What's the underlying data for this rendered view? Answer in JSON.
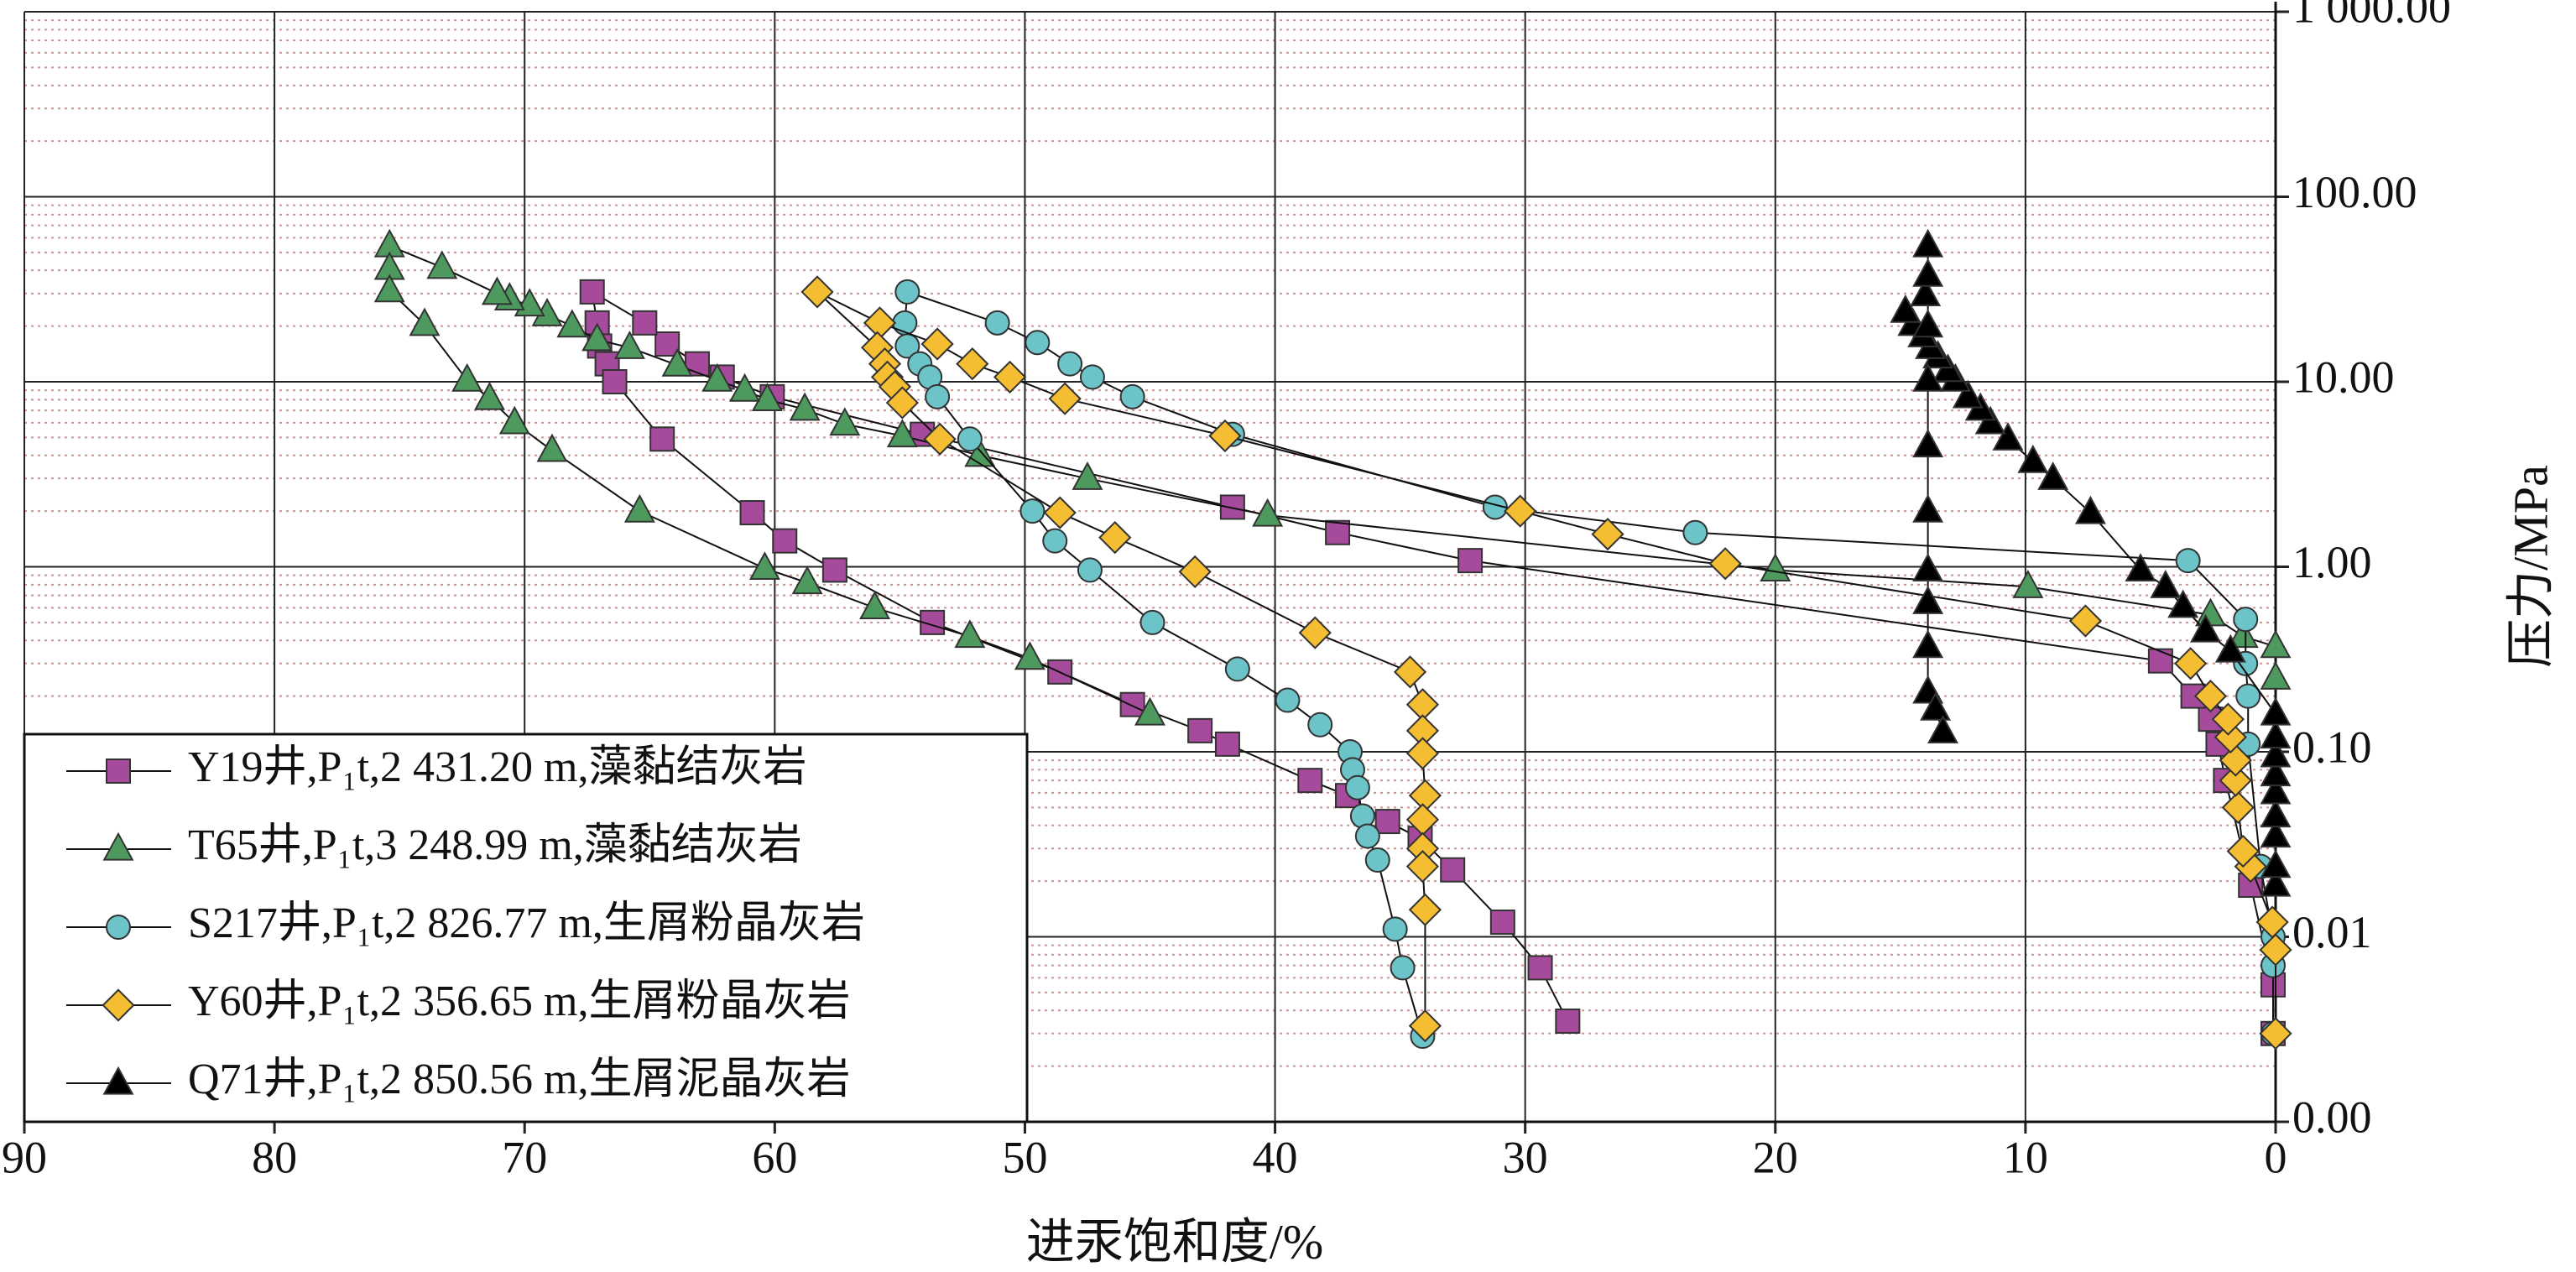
{
  "chart_data": {
    "type": "line",
    "x_label": "进汞饱和度/%",
    "y_label": "压力/MPa",
    "xlim": [
      90,
      0
    ],
    "xticks": [
      90,
      80,
      70,
      60,
      50,
      40,
      30,
      20,
      10,
      0
    ],
    "ylim": [
      0.001,
      1000
    ],
    "log_y": true,
    "yticks": [
      {
        "value": 0.001,
        "label": "0.00"
      },
      {
        "value": 0.01,
        "label": "0.01"
      },
      {
        "value": 0.1,
        "label": "0.10"
      },
      {
        "value": 1,
        "label": "1.00"
      },
      {
        "value": 10,
        "label": "10.00"
      },
      {
        "value": 100,
        "label": "100.00"
      },
      {
        "value": 1000,
        "label": "1 000.00"
      }
    ],
    "grid": true,
    "legend": "lower left",
    "series": [
      {
        "name": "Y19井,P₁t,2 431.20 m,藻黏结灰岩",
        "color": "#a64b9c",
        "marker": "square",
        "x": [
          0.1,
          0.1,
          1.0,
          2.0,
          2.3,
          2.6,
          3.3,
          4.6,
          32.2,
          37.5,
          41.7,
          54.1,
          60.1,
          62.1,
          63.1,
          64.3,
          65.2,
          67.3,
          67.1,
          67.0,
          66.7,
          66.4,
          64.5,
          60.9,
          59.6,
          57.6,
          53.7,
          48.6,
          45.7,
          43.0,
          41.9,
          38.6,
          37.1,
          35.5,
          34.2,
          32.9,
          30.9,
          29.4,
          28.3
        ],
        "values": [
          0.003,
          0.0055,
          0.019,
          0.07,
          0.11,
          0.15,
          0.2,
          0.31,
          1.08,
          1.53,
          2.1,
          5.2,
          8.3,
          10.6,
          12.5,
          16,
          20.8,
          30.6,
          20.8,
          15.6,
          12.5,
          10,
          4.9,
          1.96,
          1.38,
          0.96,
          0.5,
          0.27,
          0.18,
          0.13,
          0.11,
          0.07,
          0.058,
          0.042,
          0.034,
          0.023,
          0.012,
          0.0068,
          0.0035
        ]
      },
      {
        "name": "T65井,P₁t,3 248.99 m,藻黏结灰岩",
        "color": "#4e9a5e",
        "marker": "triangle",
        "x": [
          0,
          0,
          1.3,
          2.6,
          9.9,
          20,
          40.3,
          47.5,
          51.8,
          54.9,
          57.2,
          58.8,
          60.3,
          61.2,
          62.3,
          63.9,
          65.8,
          67.1,
          68.1,
          69.1,
          69.8,
          70.6,
          71.1,
          73.3,
          75.4,
          75.4,
          75.4,
          74.0,
          72.3,
          71.4,
          70.4,
          68.9,
          65.4,
          60.4,
          58.7,
          56.0,
          52.2,
          49.8,
          45.0
        ],
        "values": [
          0.25,
          0.37,
          0.42,
          0.55,
          0.78,
          0.96,
          1.9,
          3.0,
          4.0,
          5.1,
          5.9,
          7.1,
          8.0,
          9.0,
          10.2,
          12.3,
          15.3,
          16.9,
          20,
          23,
          26,
          28,
          30,
          41.5,
          54.3,
          41,
          31,
          20.4,
          10.2,
          8.1,
          6.0,
          4.25,
          2.0,
          0.98,
          0.82,
          0.6,
          0.42,
          0.32,
          0.16
        ]
      },
      {
        "name": "S217井,P₁t,2 826.77 m,生屑粉晶灰岩",
        "color": "#6cc4c9",
        "marker": "circle",
        "x": [
          0.1,
          0.1,
          0.1,
          0.6,
          1.1,
          1.1,
          1.2,
          1.2,
          3.5,
          23.2,
          31.2,
          41.7,
          45.7,
          47.3,
          48.2,
          49.5,
          51.1,
          54.7,
          54.8,
          54.7,
          54.2,
          53.8,
          53.5,
          52.2,
          49.7,
          48.8,
          47.4,
          44.9,
          41.5,
          39.5,
          38.2,
          37.0,
          36.9,
          36.7,
          36.5,
          36.3,
          35.9,
          35.2,
          34.9,
          34.1
        ],
        "values": [
          0.003,
          0.007,
          0.01,
          0.024,
          0.11,
          0.2,
          0.3,
          0.52,
          1.08,
          1.53,
          2.1,
          5.2,
          8.3,
          10.6,
          12.5,
          16.3,
          20.8,
          30.6,
          20.8,
          15.6,
          12.5,
          10.6,
          8.3,
          4.9,
          2.0,
          1.38,
          0.96,
          0.5,
          0.28,
          0.19,
          0.14,
          0.1,
          0.08,
          0.064,
          0.045,
          0.035,
          0.026,
          0.011,
          0.0068,
          0.0029
        ]
      },
      {
        "name": "Y60井,P₁t,2 356.65 m,生屑粉晶灰岩",
        "color": "#f5be32",
        "marker": "diamond",
        "x": [
          0,
          0,
          0.13,
          1.0,
          1.3,
          1.5,
          1.6,
          1.6,
          1.8,
          1.9,
          2.6,
          3.4,
          7.6,
          22,
          26.7,
          30.2,
          42,
          48.4,
          50.6,
          52.1,
          53.5,
          55.8,
          58.3,
          55.9,
          55.6,
          55.5,
          55.2,
          54.9,
          53.4,
          48.6,
          46.4,
          43.2,
          38.4,
          34.6,
          34.1,
          34.1,
          34.1,
          34.0,
          34.1,
          34.1,
          34.1,
          34.0,
          34.0
        ],
        "values": [
          0.003,
          0.0085,
          0.012,
          0.024,
          0.029,
          0.05,
          0.07,
          0.09,
          0.12,
          0.15,
          0.2,
          0.3,
          0.51,
          1.04,
          1.5,
          2.0,
          5.1,
          8.1,
          10.6,
          12.5,
          16,
          20.8,
          30.6,
          15.3,
          12.5,
          10.6,
          9.4,
          7.7,
          4.9,
          1.96,
          1.44,
          0.94,
          0.44,
          0.27,
          0.18,
          0.13,
          0.098,
          0.058,
          0.043,
          0.03,
          0.024,
          0.014,
          0.0033
        ]
      },
      {
        "name": "Q71井,P₁t,2 850.56 m,生屑泥晶灰岩",
        "color": "#000000",
        "marker": "triangle",
        "x": [
          0,
          0,
          0,
          0,
          0,
          0,
          0,
          0,
          0,
          1.8,
          2.8,
          3.7,
          4.4,
          5.4,
          7.4,
          8.9,
          9.7,
          10.7,
          11.4,
          11.8,
          12.3,
          12.8,
          13.1,
          13.5,
          13.8,
          14.1,
          14.5,
          14.8,
          14.0,
          13.9,
          13.9,
          13.9,
          13.9,
          13.9,
          13.9,
          13.9,
          13.9,
          13.9,
          13.9,
          13.6,
          13.3
        ],
        "values": [
          0.019,
          0.024,
          0.035,
          0.045,
          0.06,
          0.075,
          0.095,
          0.12,
          0.16,
          0.35,
          0.45,
          0.61,
          0.78,
          0.96,
          1.96,
          3.0,
          3.7,
          4.9,
          6.0,
          7.1,
          8.3,
          10.2,
          11.5,
          13.6,
          15.3,
          17.7,
          20.4,
          24,
          29.5,
          37.6,
          54.3,
          20,
          10.2,
          4.5,
          2.0,
          0.96,
          0.64,
          0.37,
          0.21,
          0.17,
          0.128
        ]
      }
    ]
  }
}
